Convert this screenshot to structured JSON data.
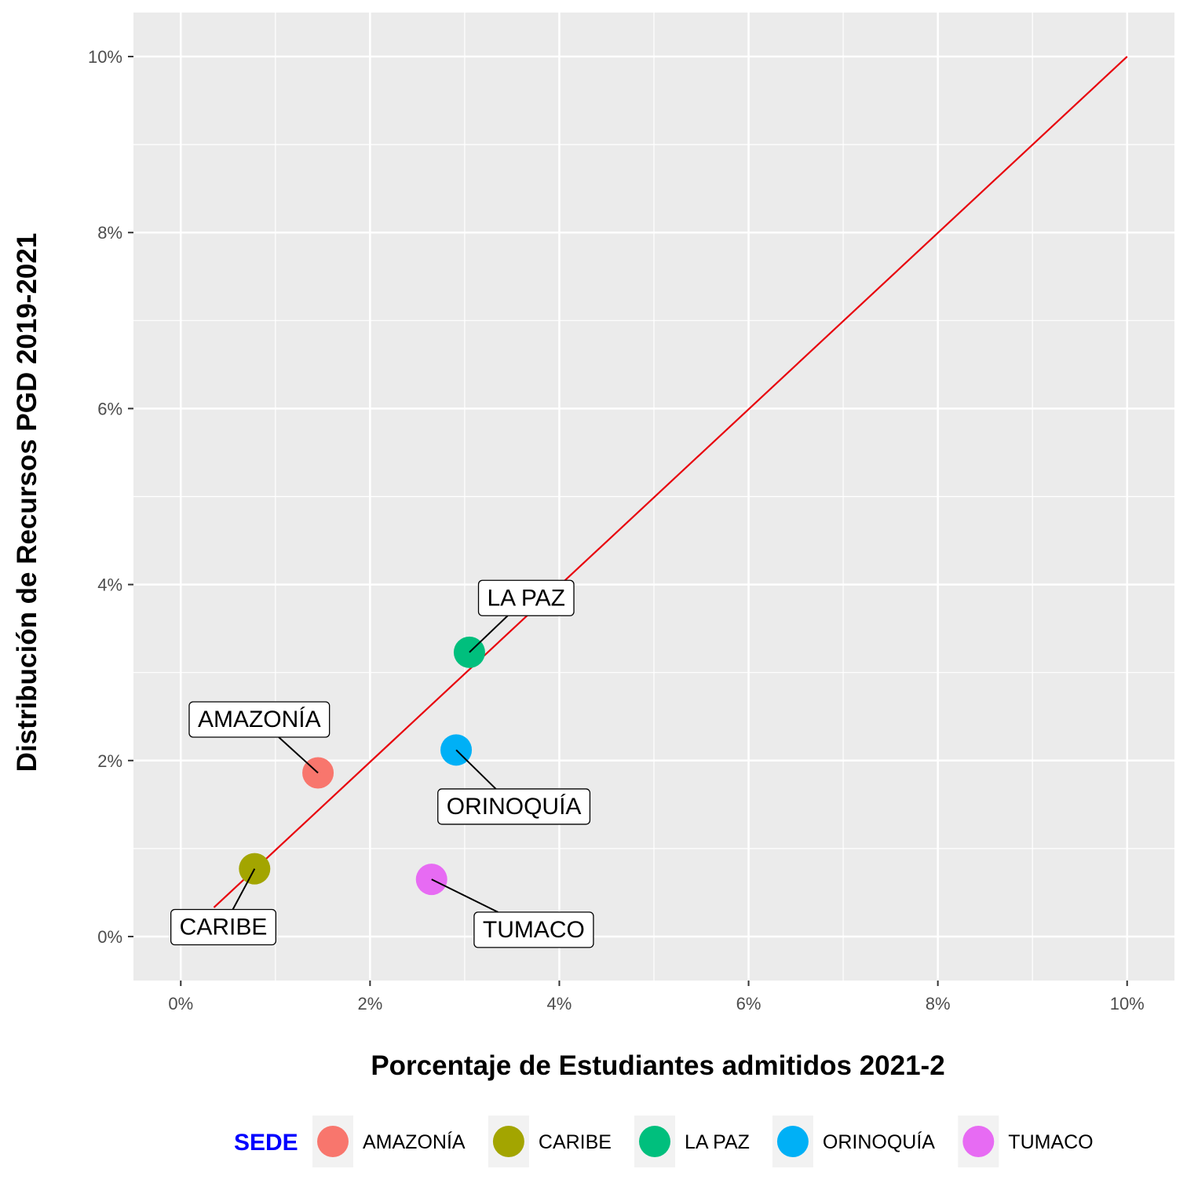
{
  "chart_data": {
    "type": "scatter",
    "title": "",
    "xlabel": "Porcentaje de Estudiantes admitidos 2021-2",
    "ylabel": "Distribución de Recursos PGD 2019-2021",
    "xlim": [
      -0.5,
      10.5
    ],
    "ylim": [
      -0.5,
      10.5
    ],
    "x_ticks": [
      0,
      2,
      4,
      6,
      8,
      10
    ],
    "y_ticks": [
      0,
      2,
      4,
      6,
      8,
      10
    ],
    "x_tick_labels": [
      "0%",
      "2%",
      "4%",
      "6%",
      "8%",
      "10%"
    ],
    "y_tick_labels": [
      "0%",
      "2%",
      "4%",
      "6%",
      "8%",
      "10%"
    ],
    "grid": true,
    "reference_line": {
      "from": [
        0.35,
        0.33
      ],
      "to": [
        10,
        10
      ],
      "color": "#e8000b"
    },
    "legend": {
      "title": "SEDE",
      "position": "bottom"
    },
    "points": [
      {
        "label": "AMAZONÍA",
        "x": 1.45,
        "y": 1.86,
        "color": "#F8766D",
        "label_x": 0.83,
        "label_y": 2.48
      },
      {
        "label": "CARIBE",
        "x": 0.78,
        "y": 0.77,
        "color": "#A3A500",
        "label_x": 0.45,
        "label_y": 0.12
      },
      {
        "label": "LA PAZ",
        "x": 3.05,
        "y": 3.23,
        "color": "#00BF7D",
        "label_x": 3.65,
        "label_y": 3.86
      },
      {
        "label": "ORINOQUÍA",
        "x": 2.91,
        "y": 2.12,
        "color": "#00B0F6",
        "label_x": 3.52,
        "label_y": 1.49
      },
      {
        "label": "TUMACO",
        "x": 2.65,
        "y": 0.65,
        "color": "#E76BF3",
        "label_x": 3.73,
        "label_y": 0.09
      }
    ]
  }
}
